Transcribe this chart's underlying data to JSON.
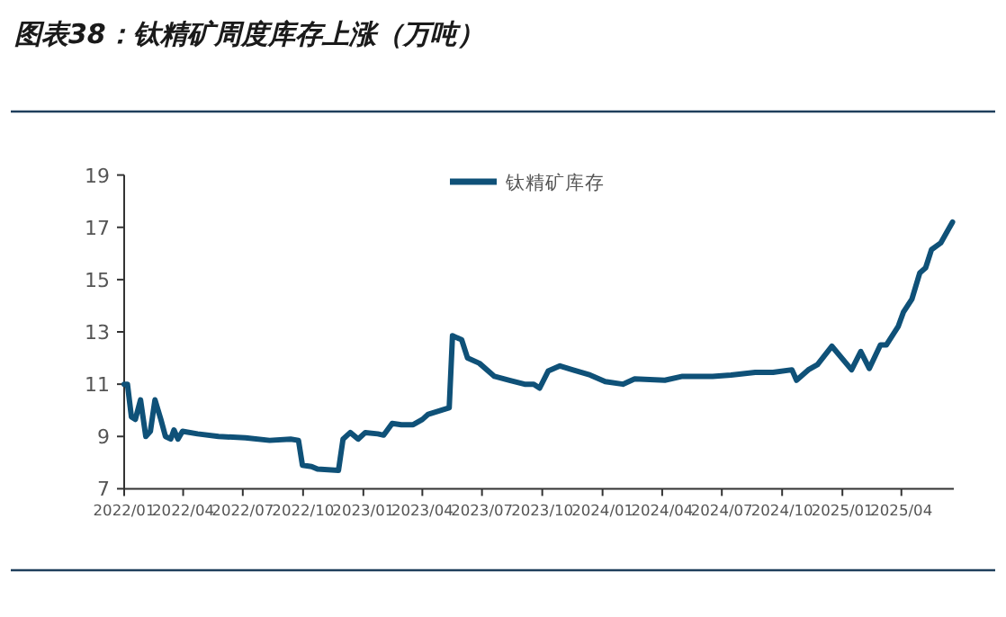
{
  "chart_data": {
    "type": "line",
    "title": "图表38：钛精矿周度库存上涨（万吨）",
    "x": [
      "2022-01-01",
      "2022-01-06",
      "2022-01-12",
      "2022-01-18",
      "2022-01-26",
      "2022-02-03",
      "2022-02-10",
      "2022-02-17",
      "2022-02-26",
      "2022-03-05",
      "2022-03-13",
      "2022-03-18",
      "2022-03-24",
      "2022-03-31",
      "2022-04-23",
      "2022-05-25",
      "2022-07-05",
      "2022-08-11",
      "2022-09-12",
      "2022-09-24",
      "2022-09-30",
      "2022-10-14",
      "2022-10-23",
      "2022-11-24",
      "2022-12-01",
      "2022-12-12",
      "2022-12-24",
      "2023-01-04",
      "2023-01-23",
      "2023-02-01",
      "2023-02-14",
      "2023-02-28",
      "2023-03-18",
      "2023-04-01",
      "2023-04-10",
      "2023-05-12",
      "2023-05-17",
      "2023-05-31",
      "2023-06-09",
      "2023-06-27",
      "2023-07-20",
      "2023-08-12",
      "2023-09-04",
      "2023-09-18",
      "2023-09-27",
      "2023-10-10",
      "2023-10-28",
      "2023-11-16",
      "2023-12-13",
      "2024-01-05",
      "2024-02-01",
      "2024-02-19",
      "2024-04-05",
      "2024-05-02",
      "2024-06-17",
      "2024-07-15",
      "2024-08-21",
      "2024-09-17",
      "2024-10-16",
      "2024-10-23",
      "2024-11-10",
      "2024-11-24",
      "2024-12-16",
      "2025-01-15",
      "2025-01-29",
      "2025-02-11",
      "2025-02-28",
      "2025-03-09",
      "2025-03-27",
      "2025-04-04",
      "2025-04-17",
      "2025-04-29",
      "2025-05-08",
      "2025-05-17",
      "2025-05-31",
      "2025-06-18"
    ],
    "series": [
      {
        "name": "钛精矿库存",
        "color": "#0f5178",
        "values": [
          11.0,
          11.0,
          9.75,
          9.65,
          10.4,
          9.0,
          9.2,
          10.4,
          9.65,
          9.0,
          8.9,
          9.25,
          8.9,
          9.2,
          9.1,
          9.0,
          8.95,
          8.85,
          8.9,
          8.85,
          7.9,
          7.85,
          7.75,
          7.7,
          8.9,
          9.15,
          8.9,
          9.15,
          9.1,
          9.05,
          9.5,
          9.45,
          9.45,
          9.65,
          9.85,
          10.1,
          12.85,
          12.7,
          12.0,
          11.8,
          11.3,
          11.15,
          11.0,
          11.0,
          10.85,
          11.5,
          11.7,
          11.55,
          11.35,
          11.1,
          11.0,
          11.2,
          11.15,
          11.3,
          11.3,
          11.35,
          11.45,
          11.45,
          11.55,
          11.15,
          11.55,
          11.75,
          12.45,
          11.55,
          12.25,
          11.6,
          12.5,
          12.5,
          13.2,
          13.75,
          14.25,
          15.25,
          15.45,
          16.15,
          16.4,
          17.2
        ]
      }
    ],
    "xlim": [
      "2022-01-01",
      "2025-06-20"
    ],
    "xticks": [
      {
        "value": "2022-01-01",
        "label": "2022/01"
      },
      {
        "value": "2022-04-01",
        "label": "2022/04"
      },
      {
        "value": "2022-07-01",
        "label": "2022/07"
      },
      {
        "value": "2022-10-01",
        "label": "2022/10"
      },
      {
        "value": "2023-01-01",
        "label": "2023/01"
      },
      {
        "value": "2023-04-01",
        "label": "2023/04"
      },
      {
        "value": "2023-07-01",
        "label": "2023/07"
      },
      {
        "value": "2023-10-01",
        "label": "2023/10"
      },
      {
        "value": "2024-01-01",
        "label": "2024/01"
      },
      {
        "value": "2024-04-01",
        "label": "2024/04"
      },
      {
        "value": "2024-07-01",
        "label": "2024/07"
      },
      {
        "value": "2024-10-01",
        "label": "2024/10"
      },
      {
        "value": "2025-01-01",
        "label": "2025/01"
      },
      {
        "value": "2025-04-01",
        "label": "2025/04"
      }
    ],
    "ylim": [
      7,
      19
    ],
    "yticks": [
      7,
      9,
      11,
      13,
      15,
      17,
      19
    ],
    "legend": "top"
  }
}
